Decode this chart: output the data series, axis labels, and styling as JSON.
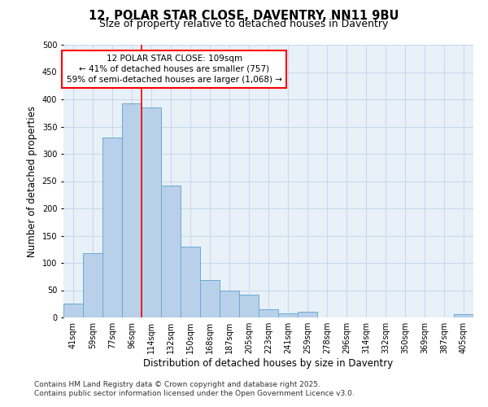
{
  "title": "12, POLAR STAR CLOSE, DAVENTRY, NN11 9BU",
  "subtitle": "Size of property relative to detached houses in Daventry",
  "xlabel": "Distribution of detached houses by size in Daventry",
  "ylabel": "Number of detached properties",
  "categories": [
    "41sqm",
    "59sqm",
    "77sqm",
    "96sqm",
    "114sqm",
    "132sqm",
    "150sqm",
    "168sqm",
    "187sqm",
    "205sqm",
    "223sqm",
    "241sqm",
    "259sqm",
    "278sqm",
    "296sqm",
    "314sqm",
    "332sqm",
    "350sqm",
    "369sqm",
    "387sqm",
    "405sqm"
  ],
  "values": [
    25,
    118,
    330,
    393,
    385,
    242,
    130,
    68,
    50,
    42,
    15,
    8,
    10,
    0,
    0,
    0,
    0,
    0,
    0,
    0,
    6
  ],
  "bar_color": "#b8d0ea",
  "bar_edge_color": "#6aaad4",
  "annotation_line1": "12 POLAR STAR CLOSE: 109sqm",
  "annotation_line2": "← 41% of detached houses are smaller (757)",
  "annotation_line3": "59% of semi-detached houses are larger (1,068) →",
  "footer_line1": "Contains HM Land Registry data © Crown copyright and database right 2025.",
  "footer_line2": "Contains public sector information licensed under the Open Government Licence v3.0.",
  "ylim": [
    0,
    500
  ],
  "grid_color": "#c8d8ec",
  "background_color": "#e8f0f8",
  "title_fontsize": 10.5,
  "subtitle_fontsize": 9,
  "tick_fontsize": 7,
  "ylabel_fontsize": 8.5,
  "xlabel_fontsize": 8.5,
  "footer_fontsize": 6.5,
  "annotation_fontsize": 7.5,
  "red_line_x": 3.5
}
